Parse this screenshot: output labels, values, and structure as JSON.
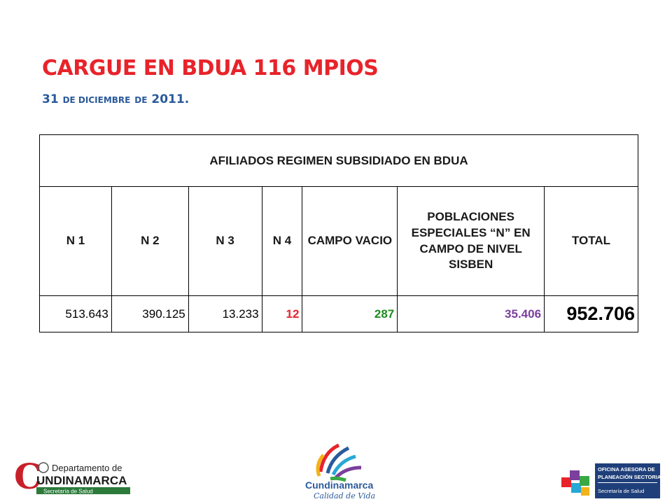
{
  "header": {
    "title": "CARGUE EN BDUA 116 MPIOS",
    "subtitle_num": "31",
    "subtitle_de1": "DE DICIEMBRE",
    "subtitle_de2": "DE",
    "subtitle_year": "2011."
  },
  "table": {
    "heading": "AFILIADOS REGIMEN SUBSIDIADO  EN BDUA",
    "columns": [
      "N 1",
      "N 2",
      "N 3",
      "N 4",
      "CAMPO VACIO",
      "POBLACIONES ESPECIALES “N” EN CAMPO DE NIVEL SISBEN",
      "TOTAL"
    ],
    "values": [
      "513.643",
      "390.125",
      "13.233",
      "12",
      "287",
      "35.406",
      "952.706"
    ],
    "colors": {
      "n4": "#e8232a",
      "campo_vacio": "#1e8a1e",
      "poblaciones": "#7b3f9e"
    }
  },
  "logos": {
    "left_line1": "Departamento de",
    "left_line2": "UNDINAMARCA",
    "left_initial": "C",
    "left_line3": "Secretaría de Salud",
    "center_name": "Cundinamarca",
    "center_slogan": "Calidad de Vida",
    "right_line1": "OFICINA ASESORA DE",
    "right_line2": "PLANEACIÓN SECTORIAL",
    "right_line3": "Secretaría de Salud"
  }
}
